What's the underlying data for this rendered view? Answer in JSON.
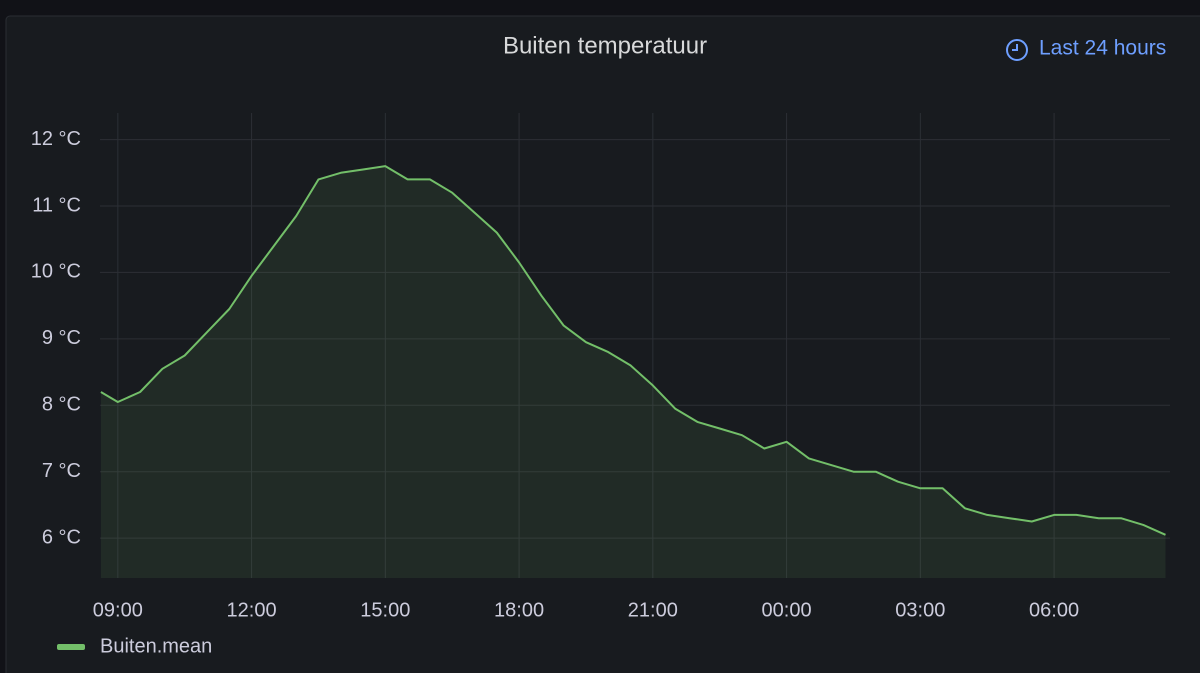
{
  "panel": {
    "time_range": "Last 24 hours"
  },
  "chart_data": {
    "type": "line",
    "title": "Buiten temperatuur",
    "x": [
      8.62,
      9,
      9.5,
      10,
      10.5,
      11,
      11.5,
      12,
      12.5,
      13,
      13.5,
      14,
      14.5,
      15,
      15.5,
      16,
      16.5,
      17,
      17.5,
      18,
      18.5,
      19,
      19.5,
      20,
      20.5,
      21,
      21.5,
      22,
      22.5,
      23,
      23.5,
      24,
      24.5,
      25,
      25.5,
      26,
      26.5,
      27,
      27.5,
      28,
      28.5,
      29,
      29.5,
      30,
      30.5,
      31,
      31.5,
      32,
      32.5
    ],
    "series": [
      {
        "name": "Buiten.mean",
        "color": "#73bf69",
        "values": [
          8.2,
          8.05,
          8.2,
          8.55,
          8.75,
          9.1,
          9.45,
          9.95,
          10.4,
          10.85,
          11.4,
          11.5,
          11.55,
          11.6,
          11.4,
          11.4,
          11.2,
          10.9,
          10.6,
          10.15,
          9.65,
          9.2,
          8.95,
          8.8,
          8.6,
          8.3,
          7.95,
          7.75,
          7.65,
          7.55,
          7.35,
          7.45,
          7.2,
          7.1,
          7.0,
          7.0,
          6.85,
          6.75,
          6.75,
          6.45,
          6.35,
          6.3,
          6.25,
          6.35,
          6.35,
          6.3,
          6.3,
          6.2,
          6.05
        ]
      }
    ],
    "xlim": [
      8.6,
      32.6
    ],
    "xticks": [
      {
        "value": 9,
        "label": "09:00"
      },
      {
        "value": 12,
        "label": "12:00"
      },
      {
        "value": 15,
        "label": "15:00"
      },
      {
        "value": 18,
        "label": "18:00"
      },
      {
        "value": 21,
        "label": "21:00"
      },
      {
        "value": 24,
        "label": "00:00"
      },
      {
        "value": 27,
        "label": "03:00"
      },
      {
        "value": 30,
        "label": "06:00"
      }
    ],
    "ylim": [
      5.4,
      12.4
    ],
    "yticks": [
      {
        "value": 6,
        "label": "6 °C"
      },
      {
        "value": 7,
        "label": "7 °C"
      },
      {
        "value": 8,
        "label": "8 °C"
      },
      {
        "value": 9,
        "label": "9 °C"
      },
      {
        "value": 10,
        "label": "10 °C"
      },
      {
        "value": 11,
        "label": "11 °C"
      },
      {
        "value": 12,
        "label": "12 °C"
      }
    ],
    "grid": true
  }
}
